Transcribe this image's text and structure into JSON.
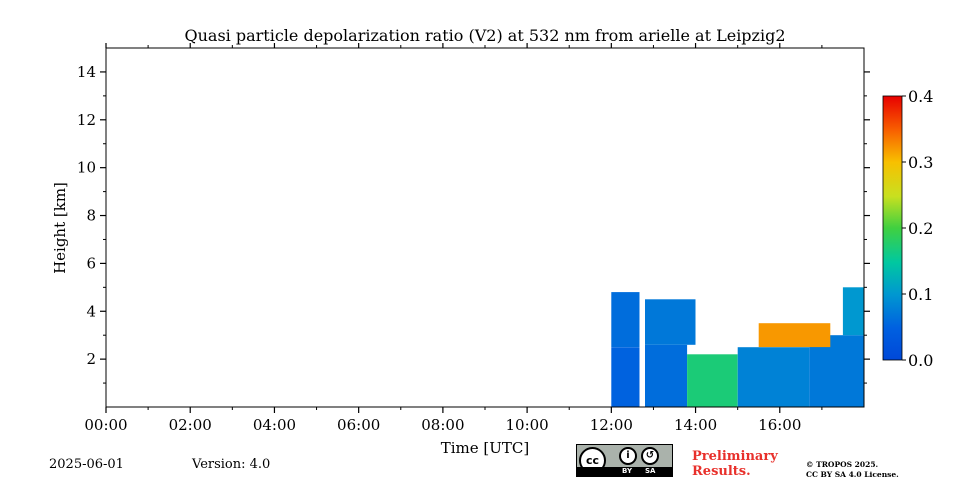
{
  "chart_data": {
    "type": "heatmap",
    "title": "Quasi particle depolarization ratio (V2) at 532 nm from arielle at Leipzig2",
    "xlabel": "Time [UTC]",
    "ylabel": "Height [km]",
    "x_ticks": [
      "00:00",
      "02:00",
      "04:00",
      "06:00",
      "08:00",
      "10:00",
      "12:00",
      "14:00",
      "16:00"
    ],
    "x_range_hours": [
      0,
      18
    ],
    "y_ticks": [
      "2",
      "4",
      "6",
      "8",
      "10",
      "12",
      "14"
    ],
    "y_range_km": [
      0,
      15
    ],
    "colorbar": {
      "range": [
        0.0,
        0.4
      ],
      "ticks": [
        "0.0",
        "0.1",
        "0.2",
        "0.3",
        "0.4"
      ],
      "colormap": "jet"
    },
    "data_gap_hours": [
      12.67,
      12.8
    ],
    "regions": [
      {
        "time_hours": [
          12.0,
          12.67
        ],
        "height_km": [
          0.0,
          2.5
        ],
        "value": 0.05
      },
      {
        "time_hours": [
          12.0,
          12.67
        ],
        "height_km": [
          2.5,
          4.8
        ],
        "value": 0.06
      },
      {
        "time_hours": [
          12.8,
          13.8
        ],
        "height_km": [
          0.0,
          2.6
        ],
        "value": 0.06
      },
      {
        "time_hours": [
          12.8,
          14.0
        ],
        "height_km": [
          2.6,
          4.5
        ],
        "value": 0.07
      },
      {
        "time_hours": [
          13.8,
          15.0
        ],
        "height_km": [
          0.0,
          2.2
        ],
        "value": 0.17
      },
      {
        "time_hours": [
          15.0,
          16.7
        ],
        "height_km": [
          0.0,
          2.5
        ],
        "value": 0.08
      },
      {
        "time_hours": [
          16.7,
          18.0
        ],
        "height_km": [
          0.0,
          3.0
        ],
        "value": 0.07
      },
      {
        "time_hours": [
          17.5,
          18.0
        ],
        "height_km": [
          3.0,
          5.0
        ],
        "value": 0.1
      },
      {
        "time_hours": [
          15.5,
          17.2
        ],
        "height_km": [
          2.5,
          3.5
        ],
        "value": 0.32
      }
    ]
  },
  "footer": {
    "date": "2025-06-01",
    "version": "Version: 4.0",
    "cc_label": "cc",
    "cc_by": "BY",
    "cc_sa": "SA",
    "prelim_line1": "Preliminary",
    "prelim_line2": "Results.",
    "license_line1": "© TROPOS 2025.",
    "license_line2": "CC BY SA 4.0 License."
  },
  "colors": {
    "preliminary_text": "#e8302b",
    "cc_badge_bg": "#aab2ab"
  }
}
